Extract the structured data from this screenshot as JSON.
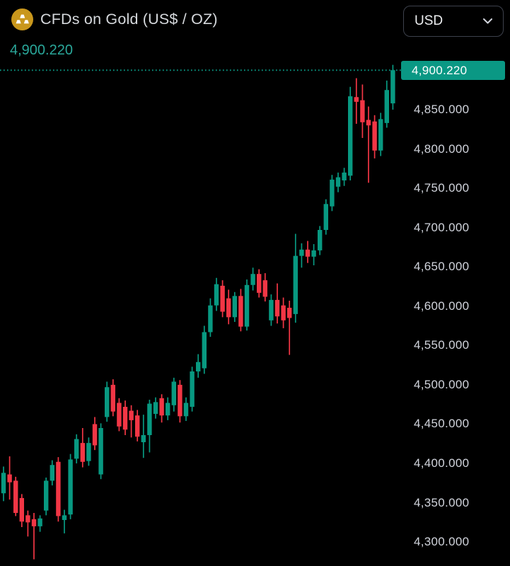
{
  "header": {
    "title": "CFDs on Gold (US$ / OZ)",
    "icon": "gold-bars-icon",
    "currency_selector": {
      "value": "USD",
      "options_visible": [
        "USD"
      ]
    }
  },
  "price_display": {
    "current_price": "4,900.220"
  },
  "price_tag": {
    "label": "4,900.220"
  },
  "colors": {
    "background": "#000000",
    "up": "#089981",
    "down": "#f23645",
    "price_line": "#0a9884",
    "tag_bg": "#0a9884",
    "axis_text": "#d1d4dc",
    "title_text": "#d5d8dc",
    "readout_text": "#2aa79a",
    "gold_icon": "#c9971c"
  },
  "chart_data": {
    "type": "candlestick",
    "title": "CFDs on Gold (US$ / OZ)",
    "current_price": 4900.22,
    "price_line_style": "dotted",
    "grid": false,
    "legend": "none",
    "visible_price_range": [
      4270,
      4910
    ],
    "price_axis_ticks": [
      {
        "label": "4,850.000",
        "price": 4850
      },
      {
        "label": "4,800.000",
        "price": 4800
      },
      {
        "label": "4,750.000",
        "price": 4750
      },
      {
        "label": "4,700.000",
        "price": 4700
      },
      {
        "label": "4,650.000",
        "price": 4650
      },
      {
        "label": "4,600.000",
        "price": 4600
      },
      {
        "label": "4,550.000",
        "price": 4550
      },
      {
        "label": "4,500.000",
        "price": 4500
      },
      {
        "label": "4,450.000",
        "price": 4450
      },
      {
        "label": "4,400.000",
        "price": 4400
      },
      {
        "label": "4,350.000",
        "price": 4350
      },
      {
        "label": "4,300.000",
        "price": 4300
      }
    ],
    "ohlc_order": [
      "open",
      "high",
      "low",
      "close"
    ],
    "candles": [
      [
        4362,
        4396,
        4352,
        4388
      ],
      [
        4386,
        4409,
        4354,
        4376
      ],
      [
        4378,
        4383,
        4333,
        4337
      ],
      [
        4356,
        4361,
        4319,
        4326
      ],
      [
        4334,
        4340,
        4307,
        4325
      ],
      [
        4329,
        4337,
        4278,
        4320
      ],
      [
        4320,
        4334,
        4313,
        4330
      ],
      [
        4340,
        4382,
        4334,
        4378
      ],
      [
        4378,
        4404,
        4372,
        4398
      ],
      [
        4402,
        4408,
        4326,
        4333
      ],
      [
        4328,
        4341,
        4311,
        4334
      ],
      [
        4335,
        4412,
        4329,
        4405
      ],
      [
        4406,
        4437,
        4400,
        4431
      ],
      [
        4426,
        4445,
        4395,
        4402
      ],
      [
        4403,
        4433,
        4397,
        4426
      ],
      [
        4450,
        4459,
        4417,
        4423
      ],
      [
        4386,
        4451,
        4380,
        4445
      ],
      [
        4459,
        4504,
        4453,
        4497
      ],
      [
        4500,
        4507,
        4460,
        4466
      ],
      [
        4477,
        4483,
        4441,
        4447
      ],
      [
        4472,
        4480,
        4436,
        4443
      ],
      [
        4467,
        4474,
        4433,
        4455
      ],
      [
        4461,
        4468,
        4428,
        4434
      ],
      [
        4427,
        4462,
        4407,
        4436
      ],
      [
        4436,
        4481,
        4414,
        4476
      ],
      [
        4463,
        4484,
        4457,
        4478
      ],
      [
        4483,
        4488,
        4452,
        4461
      ],
      [
        4461,
        4484,
        4455,
        4477
      ],
      [
        4474,
        4509,
        4466,
        4504
      ],
      [
        4500,
        4506,
        4452,
        4460
      ],
      [
        4460,
        4484,
        4454,
        4477
      ],
      [
        4472,
        4523,
        4466,
        4517
      ],
      [
        4517,
        4539,
        4509,
        4529
      ],
      [
        4521,
        4575,
        4514,
        4567
      ],
      [
        4567,
        4610,
        4561,
        4601
      ],
      [
        4601,
        4636,
        4594,
        4628
      ],
      [
        4626,
        4633,
        4586,
        4593
      ],
      [
        4610,
        4621,
        4577,
        4586
      ],
      [
        4586,
        4618,
        4580,
        4613
      ],
      [
        4613,
        4622,
        4568,
        4574
      ],
      [
        4574,
        4634,
        4569,
        4627
      ],
      [
        4627,
        4649,
        4620,
        4641
      ],
      [
        4641,
        4647,
        4611,
        4617
      ],
      [
        4633,
        4642,
        4606,
        4612
      ],
      [
        4582,
        4615,
        4575,
        4608
      ],
      [
        4608,
        4629,
        4578,
        4587
      ],
      [
        4601,
        4611,
        4572,
        4582
      ],
      [
        4598,
        4607,
        4538,
        4585
      ],
      [
        4590,
        4692,
        4579,
        4664
      ],
      [
        4664,
        4680,
        4649,
        4672
      ],
      [
        4672,
        4683,
        4655,
        4663
      ],
      [
        4663,
        4679,
        4652,
        4671
      ],
      [
        4671,
        4702,
        4665,
        4697
      ],
      [
        4697,
        4736,
        4691,
        4730
      ],
      [
        4727,
        4767,
        4721,
        4761
      ],
      [
        4752,
        4770,
        4745,
        4764
      ],
      [
        4760,
        4776,
        4753,
        4770
      ],
      [
        4766,
        4879,
        4760,
        4867
      ],
      [
        4866,
        4890,
        4832,
        4860
      ],
      [
        4862,
        4882,
        4814,
        4834
      ],
      [
        4837,
        4854,
        4757,
        4830
      ],
      [
        4835,
        4843,
        4788,
        4798
      ],
      [
        4798,
        4846,
        4791,
        4838
      ],
      [
        4833,
        4887,
        4827,
        4875
      ],
      [
        4858,
        4907,
        4850,
        4900.22
      ]
    ]
  }
}
